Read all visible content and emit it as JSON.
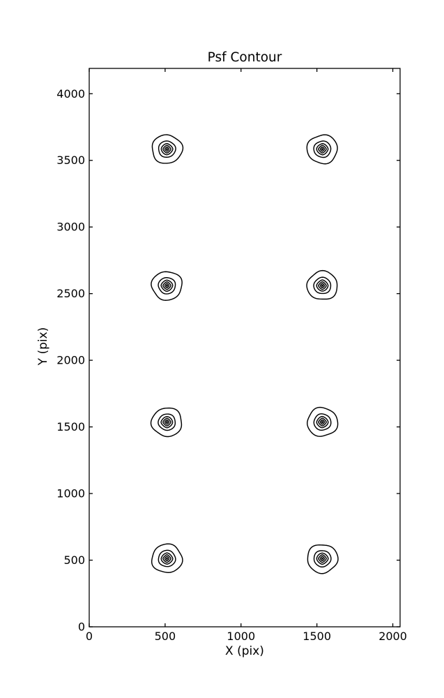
{
  "page": {
    "background": "#ffffff"
  },
  "chart_data": {
    "type": "contour",
    "title": "Psf Contour",
    "xlabel": "X (pix)",
    "ylabel": "Y (pix)",
    "xlim": [
      0,
      2048
    ],
    "ylim": [
      0,
      4190
    ],
    "xticks": [
      {
        "value": 0,
        "label": "0"
      },
      {
        "value": 500,
        "label": "500"
      },
      {
        "value": 1000,
        "label": "1000"
      },
      {
        "value": 1500,
        "label": "1500"
      },
      {
        "value": 2000,
        "label": "2000"
      }
    ],
    "yticks": [
      {
        "value": 0,
        "label": "0"
      },
      {
        "value": 500,
        "label": "500"
      },
      {
        "value": 1000,
        "label": "1000"
      },
      {
        "value": 1500,
        "label": "1500"
      },
      {
        "value": 2000,
        "label": "2000"
      },
      {
        "value": 2500,
        "label": "2500"
      },
      {
        "value": 3000,
        "label": "3000"
      },
      {
        "value": 3500,
        "label": "3500"
      },
      {
        "value": 4000,
        "label": "4000"
      }
    ],
    "grid": false,
    "legend": null,
    "tick_direction": "in",
    "line_color": "#000000",
    "background": "#ffffff",
    "psf_grid": {
      "columns_x": [
        512,
        1536
      ],
      "rows_y": [
        512,
        1536,
        2560,
        3584
      ],
      "centers": [
        [
          512,
          512
        ],
        [
          1536,
          512
        ],
        [
          512,
          1536
        ],
        [
          1536,
          1536
        ],
        [
          512,
          2560
        ],
        [
          1536,
          2560
        ],
        [
          512,
          3584
        ],
        [
          1536,
          3584
        ]
      ],
      "n_contour_levels": 6,
      "ring_rx_data": [
        100,
        56,
        38,
        26,
        14
      ],
      "ring_ry_data": [
        107,
        61,
        42,
        29,
        16
      ],
      "core_dot_rx_data": 6.5,
      "core_dot_ry_data": 7.5
    }
  }
}
